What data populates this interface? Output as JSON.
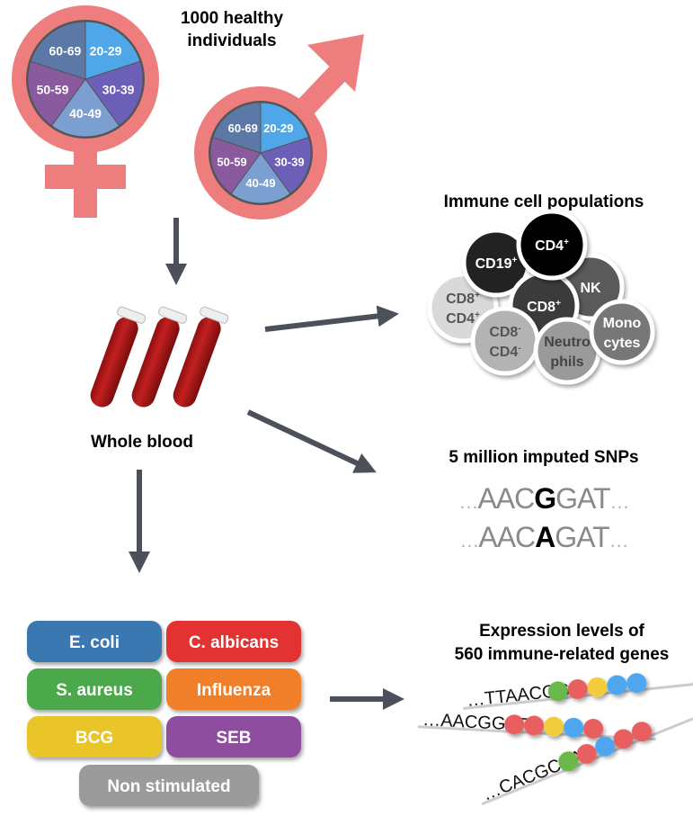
{
  "cohort": {
    "title_line1": "1000 healthy",
    "title_line2": "individuals",
    "age_groups": [
      {
        "label": "20-29",
        "color": "#4fa6e8"
      },
      {
        "label": "30-39",
        "color": "#6b5fb8"
      },
      {
        "label": "40-49",
        "color": "#7c9fd2"
      },
      {
        "label": "50-59",
        "color": "#8a5a9f"
      },
      {
        "label": "60-69",
        "color": "#5b78a6"
      }
    ],
    "symbol_color": "#ee7e7e",
    "female_icon": "female-symbol-icon",
    "male_icon": "male-symbol-icon"
  },
  "blood": {
    "label": "Whole blood",
    "icon": "blood-tubes-icon"
  },
  "immune_cells": {
    "title": "Immune cell populations",
    "cells": [
      {
        "line1": "CD8",
        "sup1": "+",
        "line2": "CD4",
        "sup2": "+",
        "fill": "#d9d9d9",
        "text": "#555555"
      },
      {
        "line1": "CD19",
        "sup1": "+",
        "fill": "#222222",
        "text": "#ffffff"
      },
      {
        "line1": "NK",
        "fill": "#5a5a5a",
        "text": "#ffffff"
      },
      {
        "line1": "CD8",
        "sup1": "+",
        "fill": "#3a3a3a",
        "text": "#ffffff"
      },
      {
        "line1": "CD4",
        "sup1": "+",
        "fill": "#000000",
        "text": "#ffffff"
      },
      {
        "line1": "CD8",
        "sup1": "-",
        "line2": "CD4",
        "sup2": "-",
        "fill": "#b3b3b3",
        "text": "#555555"
      },
      {
        "line1": "Neutro",
        "line2": "phils",
        "fill": "#9a9a9a",
        "text": "#444444"
      },
      {
        "line1": "Mono",
        "line2": "cytes",
        "fill": "#777777",
        "text": "#ffffff"
      }
    ]
  },
  "snps": {
    "title": "5 million imputed SNPs",
    "seq1": {
      "prefix": "…",
      "before": "AAC",
      "allele": "G",
      "after": "GAT",
      "suffix": "…"
    },
    "seq2": {
      "prefix": "…",
      "before": "AAC",
      "allele": "A",
      "after": "GAT",
      "suffix": "…"
    }
  },
  "stimuli": [
    {
      "label": "E. coli",
      "color": "#3a78b2"
    },
    {
      "label": "C. albicans",
      "color": "#e23232"
    },
    {
      "label": "S. aureus",
      "color": "#4ba94b"
    },
    {
      "label": "Influenza",
      "color": "#f17f2b"
    },
    {
      "label": "BCG",
      "color": "#e9c52c"
    },
    {
      "label": "SEB",
      "color": "#8f4ea0"
    },
    {
      "label": "Non stimulated",
      "color": "#9b9b9b"
    }
  ],
  "expression": {
    "title_line1": "Expression levels of",
    "title_line2": "560 immune-related genes",
    "reads": [
      {
        "seq": "…TTAACGG",
        "beads": [
          "#6ab84a",
          "#e85f5f",
          "#f2cd3a",
          "#4fa6f0",
          "#4fa6f0"
        ]
      },
      {
        "seq": "…AACGGAT",
        "beads": [
          "#e85f5f",
          "#e85f5f",
          "#f2cd3a",
          "#4fa6f0",
          "#e85f5f"
        ]
      },
      {
        "seq": "…CACGCAA",
        "beads": [
          "#6ab84a",
          "#e85f5f",
          "#4fa6f0",
          "#e85f5f",
          "#e85f5f"
        ]
      }
    ]
  },
  "arrow_color": "#4b505a"
}
